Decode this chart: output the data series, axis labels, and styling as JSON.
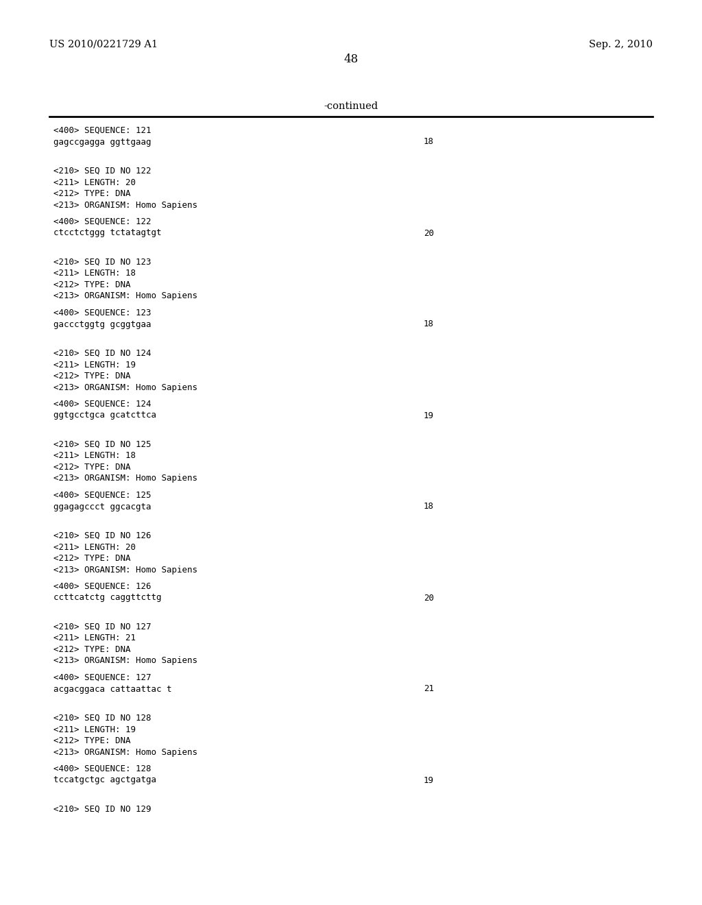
{
  "bg_color": "#ffffff",
  "header_left": "US 2010/0221729 A1",
  "header_right": "Sep. 2, 2010",
  "page_number": "48",
  "continued_label": "-continued",
  "content": [
    {
      "type": "seq400",
      "text": "<400> SEQUENCE: 121"
    },
    {
      "type": "sequence",
      "seq": "gagccgagga ggttgaag",
      "num": "18"
    },
    {
      "type": "blank2"
    },
    {
      "type": "seq210",
      "lines": [
        "<210> SEQ ID NO 122",
        "<211> LENGTH: 20",
        "<212> TYPE: DNA",
        "<213> ORGANISM: Homo Sapiens"
      ]
    },
    {
      "type": "blank1"
    },
    {
      "type": "seq400",
      "text": "<400> SEQUENCE: 122"
    },
    {
      "type": "sequence",
      "seq": "ctcctctggg tctatagtgt",
      "num": "20"
    },
    {
      "type": "blank2"
    },
    {
      "type": "seq210",
      "lines": [
        "<210> SEQ ID NO 123",
        "<211> LENGTH: 18",
        "<212> TYPE: DNA",
        "<213> ORGANISM: Homo Sapiens"
      ]
    },
    {
      "type": "blank1"
    },
    {
      "type": "seq400",
      "text": "<400> SEQUENCE: 123"
    },
    {
      "type": "sequence",
      "seq": "gaccctggtg gcggtgaa",
      "num": "18"
    },
    {
      "type": "blank2"
    },
    {
      "type": "seq210",
      "lines": [
        "<210> SEQ ID NO 124",
        "<211> LENGTH: 19",
        "<212> TYPE: DNA",
        "<213> ORGANISM: Homo Sapiens"
      ]
    },
    {
      "type": "blank1"
    },
    {
      "type": "seq400",
      "text": "<400> SEQUENCE: 124"
    },
    {
      "type": "sequence",
      "seq": "ggtgcctgca gcatcttca",
      "num": "19"
    },
    {
      "type": "blank2"
    },
    {
      "type": "seq210",
      "lines": [
        "<210> SEQ ID NO 125",
        "<211> LENGTH: 18",
        "<212> TYPE: DNA",
        "<213> ORGANISM: Homo Sapiens"
      ]
    },
    {
      "type": "blank1"
    },
    {
      "type": "seq400",
      "text": "<400> SEQUENCE: 125"
    },
    {
      "type": "sequence",
      "seq": "ggagagccct ggcacgta",
      "num": "18"
    },
    {
      "type": "blank2"
    },
    {
      "type": "seq210",
      "lines": [
        "<210> SEQ ID NO 126",
        "<211> LENGTH: 20",
        "<212> TYPE: DNA",
        "<213> ORGANISM: Homo Sapiens"
      ]
    },
    {
      "type": "blank1"
    },
    {
      "type": "seq400",
      "text": "<400> SEQUENCE: 126"
    },
    {
      "type": "sequence",
      "seq": "ccttcatctg caggttcttg",
      "num": "20"
    },
    {
      "type": "blank2"
    },
    {
      "type": "seq210",
      "lines": [
        "<210> SEQ ID NO 127",
        "<211> LENGTH: 21",
        "<212> TYPE: DNA",
        "<213> ORGANISM: Homo Sapiens"
      ]
    },
    {
      "type": "blank1"
    },
    {
      "type": "seq400",
      "text": "<400> SEQUENCE: 127"
    },
    {
      "type": "sequence",
      "seq": "acgacggaca cattaattac t",
      "num": "21"
    },
    {
      "type": "blank2"
    },
    {
      "type": "seq210",
      "lines": [
        "<210> SEQ ID NO 128",
        "<211> LENGTH: 19",
        "<212> TYPE: DNA",
        "<213> ORGANISM: Homo Sapiens"
      ]
    },
    {
      "type": "blank1"
    },
    {
      "type": "seq400",
      "text": "<400> SEQUENCE: 128"
    },
    {
      "type": "sequence",
      "seq": "tccatgctgc agctgatga",
      "num": "19"
    },
    {
      "type": "blank2"
    },
    {
      "type": "seq210_partial",
      "lines": [
        "<210> SEQ ID NO 129"
      ]
    }
  ]
}
